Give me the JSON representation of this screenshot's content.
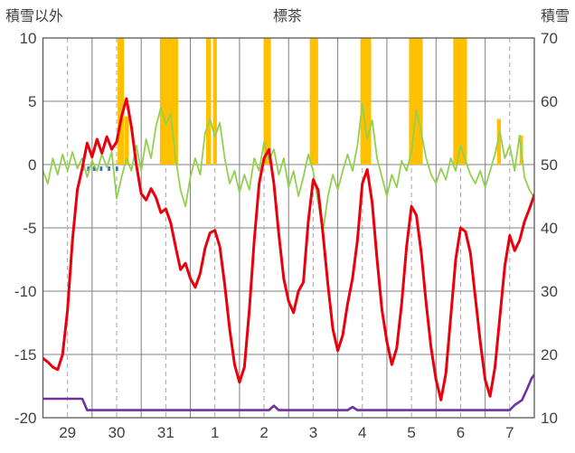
{
  "title": "標茶",
  "left_axis_label": "積雪以外",
  "right_axis_label": "積雪",
  "chart_data": {
    "type": "line",
    "title": "標茶",
    "x_note": "t in days from 00:00 of day 29; day tick labels centered at noon of each day",
    "x_tick_labels": [
      "29",
      "30",
      "31",
      "1",
      "2",
      "3",
      "4",
      "5",
      "6",
      "7"
    ],
    "x_range_days": [
      0,
      10
    ],
    "left_ylim": [
      -20,
      10
    ],
    "left_yticks": [
      10,
      5,
      0,
      -5,
      -10,
      -15,
      -20
    ],
    "right_ylim": [
      10,
      70
    ],
    "right_yticks": [
      70,
      60,
      50,
      40,
      30,
      20,
      10
    ],
    "grid": {
      "h_step": 5,
      "v_solid_every_days": 1,
      "v_dashed_at_noon": true
    },
    "t_step": 0.1,
    "series": [
      {
        "name": "temperature",
        "axis": "left",
        "color": "#e8000d",
        "stroke_width": 3,
        "values": [
          -15.3,
          -15.6,
          -16.0,
          -16.2,
          -15.0,
          -11.5,
          -6.0,
          -2.0,
          -0.3,
          1.7,
          0.6,
          2.0,
          0.9,
          2.2,
          1.2,
          1.8,
          3.8,
          5.2,
          3.0,
          0.0,
          -2.3,
          -2.8,
          -1.9,
          -2.6,
          -3.8,
          -3.5,
          -4.6,
          -6.5,
          -8.3,
          -7.8,
          -9.0,
          -9.7,
          -8.6,
          -6.6,
          -5.4,
          -5.2,
          -6.5,
          -9.5,
          -13.0,
          -15.8,
          -17.2,
          -16.0,
          -11.5,
          -6.0,
          -1.5,
          0.5,
          1.2,
          -1.5,
          -5.5,
          -9.0,
          -10.8,
          -11.7,
          -10.0,
          -9.3,
          -4.5,
          -1.2,
          -2.0,
          -5.5,
          -9.5,
          -13.0,
          -14.7,
          -13.5,
          -11.0,
          -9.0,
          -6.0,
          -1.5,
          -0.4,
          -3.0,
          -7.5,
          -11.5,
          -14.0,
          -15.8,
          -14.5,
          -11.0,
          -6.5,
          -3.3,
          -4.0,
          -7.0,
          -11.0,
          -14.5,
          -17.0,
          -18.6,
          -16.5,
          -12.0,
          -7.5,
          -5.0,
          -5.3,
          -7.0,
          -10.5,
          -14.0,
          -17.0,
          -18.3,
          -16.0,
          -12.0,
          -8.0,
          -5.6,
          -6.8,
          -6.0,
          -4.5,
          -3.5,
          -2.4
        ]
      },
      {
        "name": "green-series",
        "axis": "left",
        "color": "#92d050",
        "stroke_width": 1.8,
        "values": [
          -0.5,
          -1.5,
          0.5,
          -0.8,
          0.8,
          -0.5,
          1.0,
          -0.3,
          0.5,
          -1.0,
          0.3,
          -0.5,
          0.8,
          -0.2,
          1.0,
          -2.7,
          -1.0,
          0.5,
          -0.5,
          1.5,
          -0.5,
          2.0,
          0.5,
          3.0,
          4.5,
          3.2,
          4.0,
          0.5,
          -2.0,
          -3.3,
          -1.0,
          0.5,
          -0.8,
          2.5,
          3.6,
          2.2,
          3.3,
          0.5,
          -1.5,
          -0.5,
          -2.2,
          -0.8,
          -2.0,
          0.5,
          -0.5,
          1.8,
          0.3,
          1.2,
          -0.8,
          0.5,
          -1.8,
          -0.5,
          -2.5,
          -1.0,
          0.8,
          -0.5,
          -3.0,
          -5.3,
          -2.5,
          -0.8,
          -2.0,
          -0.5,
          0.8,
          -0.5,
          1.5,
          4.8,
          2.0,
          3.5,
          0.5,
          -1.0,
          -2.5,
          -0.8,
          -1.8,
          0.3,
          -0.5,
          1.0,
          4.3,
          2.5,
          0.5,
          -0.8,
          -1.5,
          -0.3,
          -1.2,
          0.5,
          -0.5,
          1.5,
          0.3,
          -0.8,
          -1.5,
          -0.5,
          -1.8,
          -0.5,
          0.8,
          2.6,
          0.5,
          1.5,
          -0.5,
          2.3,
          -1.0,
          -2.0,
          -2.6
        ]
      }
    ],
    "snow_depth": {
      "name": "snow-depth",
      "axis": "right",
      "color": "#7030a0",
      "stroke_width": 2.6,
      "points": [
        [
          0,
          13
        ],
        [
          0.8,
          13
        ],
        [
          0.9,
          11.2
        ],
        [
          4.6,
          11.2
        ],
        [
          4.7,
          11.9
        ],
        [
          4.8,
          11.2
        ],
        [
          6.2,
          11.2
        ],
        [
          6.3,
          11.7
        ],
        [
          6.4,
          11.2
        ],
        [
          9.5,
          11.2
        ],
        [
          9.6,
          12
        ],
        [
          9.75,
          12.8
        ],
        [
          9.85,
          14.5
        ],
        [
          9.95,
          16.3
        ],
        [
          10,
          16.8
        ]
      ]
    },
    "bars": {
      "name": "sunshine-bars",
      "color": "#ffc000",
      "items_t_w_h": [
        [
          1.52,
          0.13,
          10
        ],
        [
          1.66,
          0.09,
          3.8
        ],
        [
          2.38,
          0.37,
          10
        ],
        [
          3.32,
          0.1,
          10
        ],
        [
          3.46,
          0.08,
          10
        ],
        [
          4.49,
          0.15,
          10
        ],
        [
          5.43,
          0.17,
          10
        ],
        [
          6.46,
          0.22,
          10
        ],
        [
          7.45,
          0.28,
          10
        ],
        [
          8.35,
          0.28,
          10
        ],
        [
          9.24,
          0.08,
          3.6
        ],
        [
          9.7,
          0.07,
          2.3
        ]
      ]
    },
    "blue_marks": {
      "name": "precip-marks",
      "color": "#2e75b6",
      "depth": -0.5,
      "items_t_w": [
        [
          0.78,
          0.05
        ],
        [
          0.9,
          0.05
        ],
        [
          1.02,
          0.05
        ],
        [
          1.16,
          0.05
        ],
        [
          1.32,
          0.05
        ],
        [
          1.48,
          0.05
        ]
      ]
    },
    "colors": {
      "grid_solid": "#808080",
      "grid_dashed": "#a6a6a6",
      "border": "#595959",
      "tick_text": "#404040"
    }
  }
}
